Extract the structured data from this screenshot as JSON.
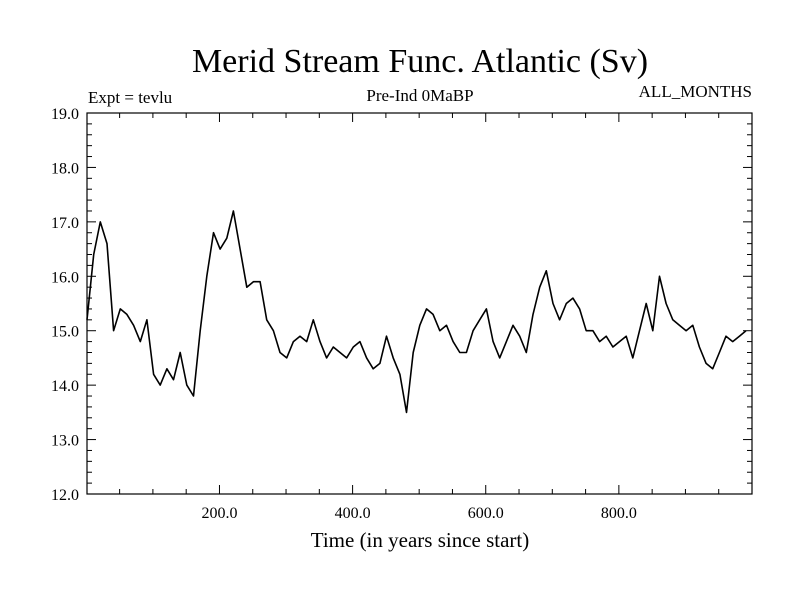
{
  "chart_data": {
    "type": "line",
    "title": "Merid Stream Func. Atlantic (Sv)",
    "subtitle_left": "Expt = tevlu",
    "subtitle_center": "Pre-Ind 0MaBP",
    "subtitle_right": "ALL_MONTHS",
    "xlabel": "Time (in years since start)",
    "ylabel": "",
    "xlim": [
      1,
      1000
    ],
    "ylim": [
      12.0,
      19.0
    ],
    "x_ticks": [
      200,
      400,
      600,
      800
    ],
    "x_tick_labels": [
      "200.0",
      "400.0",
      "600.0",
      "800.0"
    ],
    "y_ticks": [
      12,
      13,
      14,
      15,
      16,
      17,
      18,
      19
    ],
    "y_tick_labels": [
      "12.0",
      "13.0",
      "14.0",
      "15.0",
      "16.0",
      "17.0",
      "18.0",
      "19.0"
    ],
    "grid": false,
    "series": [
      {
        "color": "#000000",
        "x_start": 1,
        "x_step": 10,
        "values": [
          15.2,
          16.4,
          17.0,
          16.6,
          15.0,
          15.4,
          15.3,
          15.1,
          14.8,
          15.2,
          14.2,
          14.0,
          14.3,
          14.1,
          14.6,
          14.0,
          13.8,
          15.0,
          16.0,
          16.8,
          16.5,
          16.7,
          17.2,
          16.5,
          15.8,
          15.9,
          15.9,
          15.2,
          15.0,
          14.6,
          14.5,
          14.8,
          14.9,
          14.8,
          15.2,
          14.8,
          14.5,
          14.7,
          14.6,
          14.5,
          14.7,
          14.8,
          14.5,
          14.3,
          14.4,
          14.9,
          14.5,
          14.2,
          13.5,
          14.6,
          15.1,
          15.4,
          15.3,
          15.0,
          15.1,
          14.8,
          14.6,
          14.6,
          15.0,
          15.2,
          15.4,
          14.8,
          14.5,
          14.8,
          15.1,
          14.9,
          14.6,
          15.3,
          15.8,
          16.1,
          15.5,
          15.2,
          15.5,
          15.6,
          15.4,
          15.0,
          15.0,
          14.8,
          14.9,
          14.7,
          14.8,
          14.9,
          14.5,
          15.0,
          15.5,
          15.0,
          16.0,
          15.5,
          15.2,
          15.1,
          15.0,
          15.1,
          14.7,
          14.4,
          14.3,
          14.6,
          14.9,
          14.8,
          14.9,
          15.0
        ]
      }
    ]
  }
}
